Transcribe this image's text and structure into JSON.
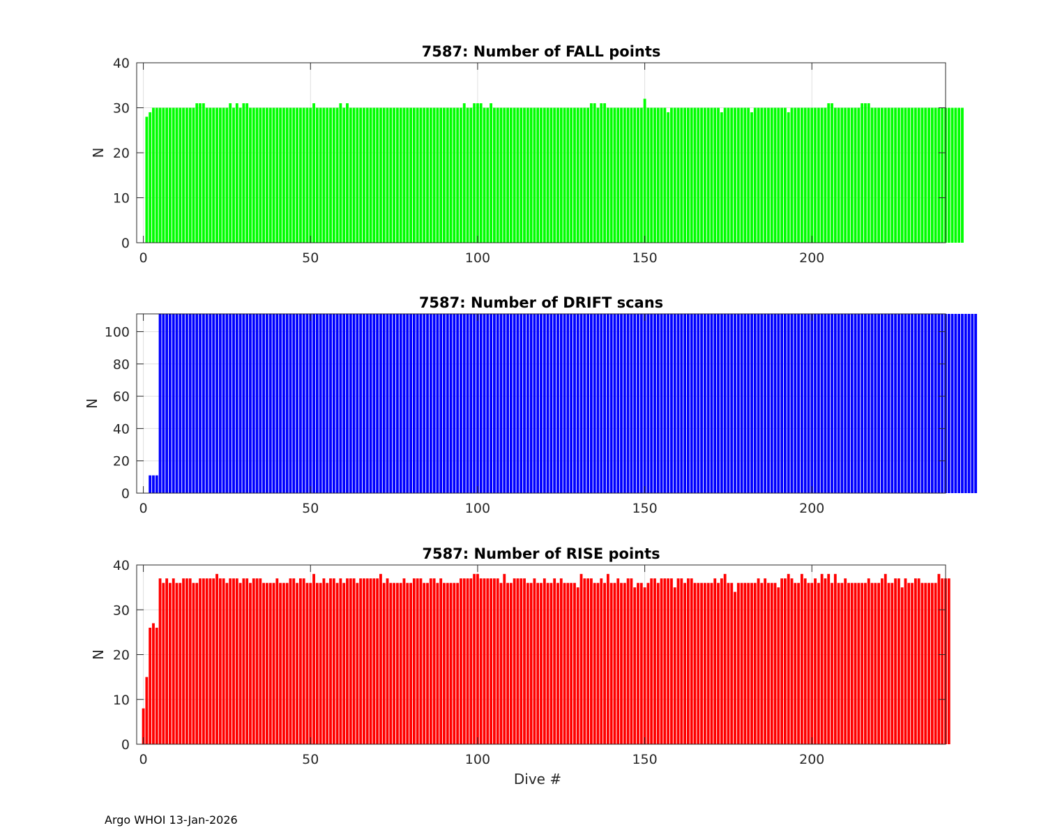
{
  "footer": "Argo WHOI 13-Jan-2026",
  "chart_data": [
    {
      "type": "bar",
      "title": "7587: Number of FALL points",
      "xlabel": "",
      "ylabel": "N",
      "color": "#00ff00",
      "xlim": [
        -2,
        240
      ],
      "ylim": [
        0,
        40
      ],
      "xticks": [
        0,
        50,
        100,
        150,
        200
      ],
      "yticks": [
        0,
        10,
        20,
        30,
        40
      ],
      "x_start": 1,
      "values": [
        28,
        29,
        30,
        30,
        30,
        30,
        30,
        30,
        30,
        30,
        30,
        30,
        30,
        30,
        30,
        31,
        31,
        31,
        30,
        30,
        30,
        30,
        30,
        30,
        30,
        31,
        30,
        31,
        30,
        31,
        31,
        30,
        30,
        30,
        30,
        30,
        30,
        30,
        30,
        30,
        30,
        30,
        30,
        30,
        30,
        30,
        30,
        30,
        30,
        30,
        31,
        30,
        30,
        30,
        30,
        30,
        30,
        30,
        31,
        30,
        31,
        30,
        30,
        30,
        30,
        30,
        30,
        30,
        30,
        30,
        30,
        30,
        30,
        30,
        30,
        30,
        30,
        30,
        30,
        30,
        30,
        30,
        30,
        30,
        30,
        30,
        30,
        30,
        30,
        30,
        30,
        30,
        30,
        30,
        30,
        31,
        30,
        30,
        31,
        31,
        31,
        30,
        30,
        31,
        30,
        30,
        30,
        30,
        30,
        30,
        30,
        30,
        30,
        30,
        30,
        30,
        30,
        30,
        30,
        30,
        30,
        30,
        30,
        30,
        30,
        30,
        30,
        30,
        30,
        30,
        30,
        30,
        30,
        31,
        31,
        30,
        31,
        31,
        30,
        30,
        30,
        30,
        30,
        30,
        30,
        30,
        30,
        30,
        30,
        32,
        30,
        30,
        30,
        30,
        30,
        30,
        29,
        30,
        30,
        30,
        30,
        30,
        30,
        30,
        30,
        30,
        30,
        30,
        30,
        30,
        30,
        30,
        29,
        30,
        30,
        30,
        30,
        30,
        30,
        30,
        30,
        29,
        30,
        30,
        30,
        30,
        30,
        30,
        30,
        30,
        30,
        30,
        29,
        30,
        30,
        30,
        30,
        30,
        30,
        30,
        30,
        30,
        30,
        30,
        31,
        31,
        30,
        30,
        30,
        30,
        30,
        30,
        30,
        30,
        31,
        31,
        31,
        30,
        30,
        30,
        30,
        30,
        30,
        30,
        30,
        30,
        30,
        30,
        30,
        30,
        30,
        30,
        30,
        30,
        30,
        30,
        30,
        30,
        30,
        30,
        30,
        30,
        30,
        30,
        30
      ]
    },
    {
      "type": "bar",
      "title": "7587: Number of DRIFT scans",
      "xlabel": "",
      "ylabel": "N",
      "color": "#0000ff",
      "xlim": [
        -2,
        240
      ],
      "ylim": [
        0,
        111
      ],
      "xticks": [
        0,
        50,
        100,
        150,
        200
      ],
      "yticks": [
        0,
        20,
        40,
        60,
        80,
        100
      ],
      "x_start": 1,
      "values": [
        0,
        11,
        11,
        11,
        111,
        111,
        111,
        111,
        111,
        111,
        111,
        111,
        111,
        111,
        111,
        111,
        111,
        111,
        111,
        111,
        111,
        111,
        111,
        111,
        111,
        111,
        111,
        111,
        111,
        111,
        111,
        111,
        111,
        111,
        111,
        111,
        111,
        111,
        111,
        111,
        111,
        111,
        111,
        111,
        111,
        111,
        111,
        111,
        111,
        111,
        111,
        111,
        111,
        111,
        111,
        111,
        111,
        111,
        111,
        111,
        111,
        111,
        111,
        111,
        111,
        111,
        111,
        111,
        111,
        111,
        111,
        111,
        111,
        111,
        111,
        111,
        111,
        111,
        111,
        111,
        111,
        111,
        111,
        111,
        111,
        111,
        111,
        111,
        111,
        111,
        111,
        111,
        111,
        111,
        111,
        111,
        111,
        111,
        111,
        111,
        111,
        111,
        111,
        111,
        111,
        111,
        111,
        111,
        111,
        111,
        111,
        111,
        111,
        111,
        111,
        111,
        111,
        111,
        111,
        111,
        111,
        111,
        111,
        111,
        111,
        111,
        111,
        111,
        111,
        111,
        111,
        111,
        111,
        111,
        111,
        111,
        111,
        111,
        111,
        111,
        111,
        111,
        111,
        111,
        111,
        111,
        111,
        111,
        111,
        111,
        111,
        111,
        111,
        111,
        111,
        111,
        111,
        111,
        111,
        111,
        111,
        111,
        111,
        111,
        111,
        111,
        111,
        111,
        111,
        111,
        111,
        111,
        111,
        111,
        111,
        111,
        111,
        111,
        111,
        111,
        111,
        111,
        111,
        111,
        111,
        111,
        111,
        111,
        111,
        111,
        111,
        111,
        111,
        111,
        111,
        111,
        111,
        111,
        111,
        111,
        111,
        111,
        111,
        111,
        111,
        111,
        111,
        111,
        111,
        111,
        111,
        111,
        111,
        111,
        111,
        111,
        111,
        111,
        111,
        111,
        111,
        111,
        111,
        111,
        111,
        111,
        111,
        111,
        111,
        111,
        111,
        111,
        111,
        111,
        111,
        111,
        111,
        111,
        111,
        111,
        111,
        111,
        111,
        111,
        111,
        111,
        111,
        111,
        111
      ]
    },
    {
      "type": "bar",
      "title": "7587: Number of RISE points",
      "xlabel": "Dive #",
      "ylabel": "N",
      "color": "#ff0000",
      "xlim": [
        -2,
        240
      ],
      "ylim": [
        0,
        40
      ],
      "xticks": [
        0,
        50,
        100,
        150,
        200
      ],
      "yticks": [
        0,
        10,
        20,
        30,
        40
      ],
      "x_start": 0,
      "values": [
        8,
        15,
        26,
        27,
        26,
        37,
        36,
        37,
        36,
        37,
        36,
        36,
        37,
        37,
        37,
        36,
        36,
        37,
        37,
        37,
        37,
        37,
        38,
        37,
        37,
        36,
        37,
        37,
        37,
        36,
        37,
        37,
        36,
        37,
        37,
        37,
        36,
        36,
        36,
        36,
        37,
        36,
        36,
        36,
        37,
        37,
        36,
        37,
        37,
        36,
        36,
        38,
        36,
        36,
        37,
        36,
        37,
        37,
        36,
        37,
        36,
        37,
        37,
        37,
        36,
        37,
        37,
        37,
        37,
        37,
        37,
        38,
        36,
        37,
        36,
        36,
        36,
        36,
        37,
        36,
        36,
        37,
        37,
        37,
        36,
        36,
        37,
        37,
        36,
        37,
        36,
        36,
        36,
        36,
        36,
        37,
        37,
        37,
        37,
        38,
        38,
        37,
        37,
        37,
        37,
        37,
        37,
        36,
        38,
        36,
        36,
        37,
        37,
        37,
        37,
        36,
        36,
        37,
        36,
        36,
        37,
        36,
        36,
        37,
        36,
        37,
        36,
        36,
        36,
        36,
        35,
        38,
        37,
        37,
        37,
        36,
        36,
        37,
        36,
        38,
        36,
        36,
        37,
        36,
        36,
        37,
        37,
        35,
        36,
        36,
        35,
        36,
        37,
        37,
        36,
        37,
        37,
        37,
        37,
        35,
        37,
        37,
        36,
        37,
        37,
        36,
        36,
        36,
        36,
        36,
        36,
        37,
        36,
        37,
        38,
        36,
        36,
        34,
        36,
        36,
        36,
        36,
        36,
        36,
        37,
        36,
        37,
        36,
        36,
        36,
        35,
        37,
        37,
        38,
        37,
        36,
        36,
        38,
        37,
        36,
        36,
        37,
        36,
        38,
        37,
        38,
        36,
        38,
        36,
        36,
        37,
        36,
        36,
        36,
        36,
        36,
        36,
        37,
        36,
        36,
        36,
        37,
        38,
        36,
        36,
        37,
        37,
        35,
        37,
        36,
        36,
        37,
        37,
        36,
        36,
        36,
        36,
        36,
        38,
        37,
        37,
        37
      ]
    }
  ]
}
